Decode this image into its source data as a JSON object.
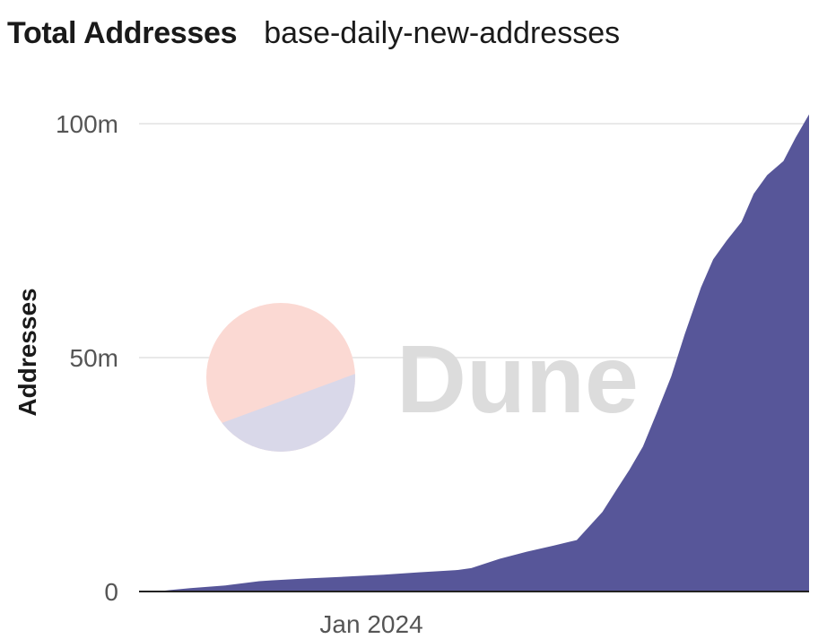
{
  "header": {
    "title": "Total Addresses",
    "subtitle": "base-daily-new-addresses"
  },
  "watermark": {
    "text": "Dune",
    "colors": {
      "top": "#fbd9d3",
      "bottom": "#d9d8e9",
      "text": "#dcdcdc"
    }
  },
  "colors": {
    "area": "#575699",
    "grid": "#e2e2e2",
    "baseline": "#222222"
  },
  "chart_data": {
    "type": "area",
    "title": "",
    "xlabel": "",
    "ylabel": "Addresses",
    "x_tick_labels": [
      {
        "label": "Jan 2024",
        "date": "2024-01-01"
      }
    ],
    "y_ticks": [
      {
        "value": 0,
        "label": "0"
      },
      {
        "value": 50000000,
        "label": "50m"
      },
      {
        "value": 100000000,
        "label": "100m"
      }
    ],
    "xlim": [
      "2023-07-13",
      "2024-11-20"
    ],
    "ylim": [
      0,
      100000000
    ],
    "grid": true,
    "legend": "none",
    "series": [
      {
        "x": [
          "2023-07-13",
          "2023-07-26",
          "2023-08-05",
          "2023-08-20",
          "2023-09-15",
          "2023-10-10",
          "2023-10-20",
          "2023-11-15",
          "2023-12-15",
          "2024-01-10",
          "2024-02-05",
          "2024-03-05",
          "2024-03-15",
          "2024-04-05",
          "2024-04-25",
          "2024-05-15",
          "2024-06-01",
          "2024-06-20",
          "2024-07-01",
          "2024-07-10",
          "2024-07-20",
          "2024-07-30",
          "2024-08-10",
          "2024-08-20",
          "2024-09-01",
          "2024-09-10",
          "2024-09-20",
          "2024-10-01",
          "2024-10-10",
          "2024-10-20",
          "2024-11-01",
          "2024-11-10",
          "2024-11-20"
        ],
        "values": [
          0,
          0,
          300000,
          700000,
          1300000,
          2200000,
          2400000,
          2800000,
          3200000,
          3600000,
          4100000,
          4600000,
          5000000,
          7000000,
          8500000,
          9800000,
          11000000,
          17000000,
          22000000,
          26000000,
          31000000,
          38000000,
          46000000,
          55000000,
          65000000,
          71000000,
          75000000,
          79000000,
          85000000,
          89000000,
          92000000,
          97000000,
          102000000
        ]
      }
    ]
  }
}
